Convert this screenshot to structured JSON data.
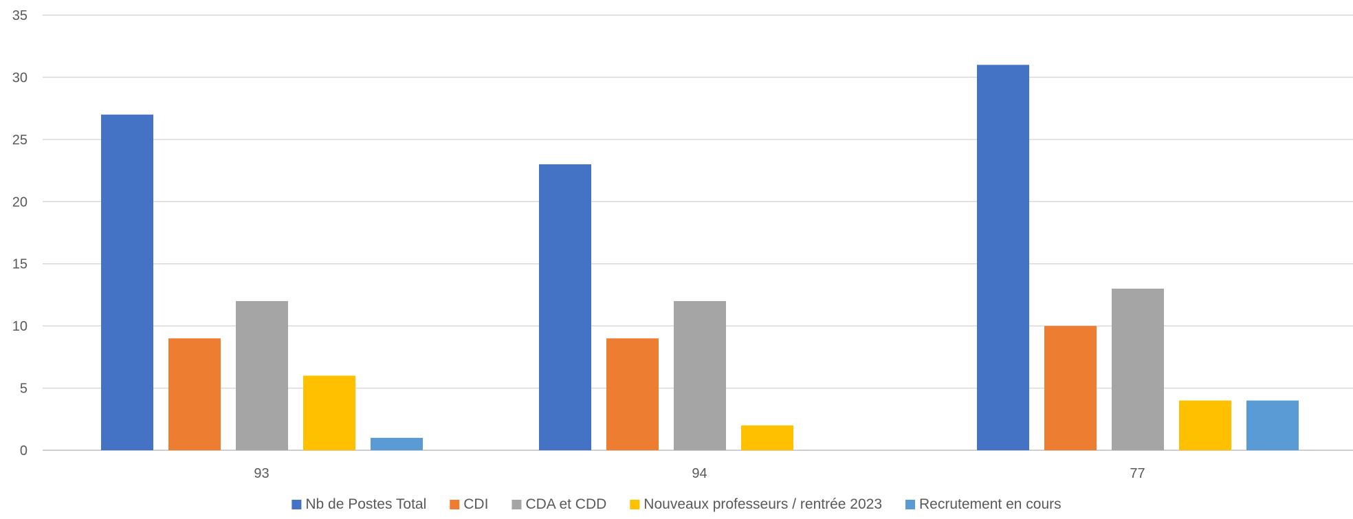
{
  "chart_data": {
    "type": "bar",
    "title": "",
    "xlabel": "",
    "ylabel": "",
    "ylim": [
      0,
      35
    ],
    "yticks": [
      0,
      5,
      10,
      15,
      20,
      25,
      30,
      35
    ],
    "grid": true,
    "legend_position": "bottom",
    "categories": [
      "93",
      "94",
      "77"
    ],
    "series": [
      {
        "name": "Nb de Postes Total",
        "color": "#4472C4",
        "values": [
          27,
          23,
          31
        ]
      },
      {
        "name": "CDI",
        "color": "#ED7D31",
        "values": [
          9,
          9,
          10
        ]
      },
      {
        "name": "CDA et CDD",
        "color": "#A5A5A5",
        "values": [
          12,
          12,
          13
        ]
      },
      {
        "name": "Nouveaux professeurs / rentrée 2023",
        "color": "#FFC000",
        "values": [
          6,
          2,
          4
        ]
      },
      {
        "name": "Recrutement en cours",
        "color": "#5B9BD5",
        "values": [
          1,
          0,
          4
        ]
      }
    ]
  }
}
